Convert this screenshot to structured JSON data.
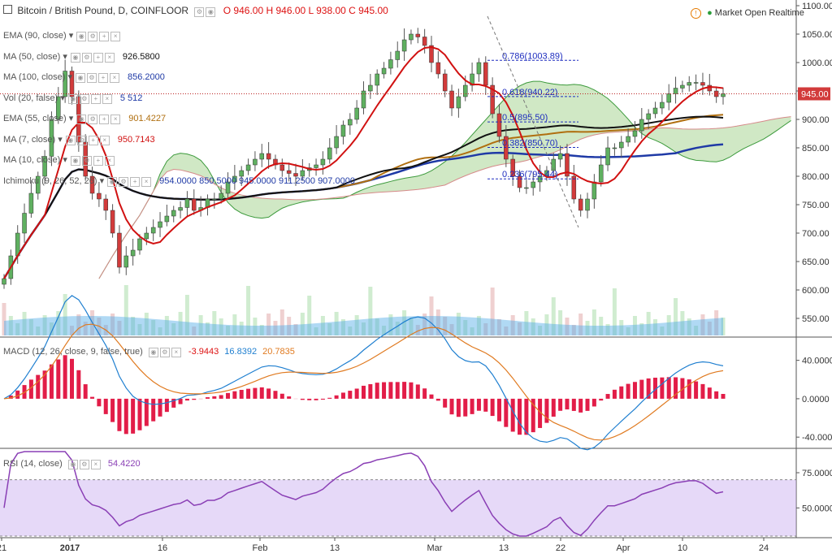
{
  "header": {
    "title": "Bitcoin / British Pound, D, COINFLOOR",
    "ohlc": {
      "o": "O 946.00",
      "h": "H 946.00",
      "l": "L 938.00",
      "c": "C 945.00"
    },
    "market": "Market Open Realtime"
  },
  "indicators": [
    {
      "name": "EMA (90, close)",
      "value": "",
      "color": "#999999"
    },
    {
      "name": "MA (50, close)",
      "value": "926.5800",
      "color": "#111111"
    },
    {
      "name": "MA (100, close)",
      "value": "856.2000",
      "color": "#1f3aa6"
    },
    {
      "name": "Vol (20, false)",
      "value": "5  512",
      "color": "#1f3aa6"
    },
    {
      "name": "EMA (55, close)",
      "value": "901.4227",
      "color": "#b06f10"
    },
    {
      "name": "MA (7, close)",
      "value": "950.7143",
      "color": "#d11111"
    },
    {
      "name": "MA (10, close)",
      "value": "",
      "color": "#999999"
    },
    {
      "name": "Ichimoku (9, 26, 52, 26)",
      "value": "954.0000  850.5000  945.0000  911.2500  907.0000",
      "color": "#1f3aa6"
    }
  ],
  "macd": {
    "label": "MACD (12, 26, close, 9, false, true)",
    "v1": "-3.9443",
    "v2": "16.8392",
    "v3": "20.7835"
  },
  "rsi": {
    "label": "RSI (14, close)",
    "value": "54.4220"
  },
  "price_label": "945.00",
  "chart_data": [
    {
      "type": "candlestick",
      "title": "Bitcoin / British Pound, D, COINFLOOR",
      "y_ticks": [
        "1100.00",
        "1050.00",
        "1000.00",
        "950.00",
        "900.00",
        "850.00",
        "800.00",
        "750.00",
        "700.00",
        "650.00",
        "600.00",
        "550.00"
      ],
      "ylim": [
        520,
        1110
      ],
      "x_ticks": [
        "21",
        "2017",
        "16",
        "Feb",
        "13",
        "Mar",
        "13",
        "22",
        "Apr",
        "10",
        "24"
      ],
      "fib_levels": [
        {
          "label": "0.786(1003.89)",
          "value": 1003.89
        },
        {
          "label": "0.618(940.22)",
          "value": 940.22
        },
        {
          "label": "0.5(895.50)",
          "value": 895.5
        },
        {
          "label": "0.382(850.70)",
          "value": 850.7
        },
        {
          "label": "0.236(795.44)",
          "value": 795.44
        }
      ],
      "current_price": 945,
      "close": [
        620,
        660,
        700,
        735,
        770,
        800,
        835,
        900,
        940,
        985,
        940,
        860,
        800,
        770,
        760,
        740,
        700,
        640,
        660,
        670,
        690,
        700,
        710,
        720,
        730,
        740,
        745,
        760,
        740,
        745,
        760,
        760,
        770,
        790,
        800,
        810,
        820,
        830,
        840,
        830,
        820,
        810,
        805,
        800,
        810,
        815,
        820,
        830,
        850,
        870,
        890,
        900,
        920,
        950,
        960,
        980,
        990,
        1005,
        1020,
        1040,
        1050,
        1045,
        1030,
        1000,
        980,
        950,
        920,
        940,
        960,
        980,
        1000,
        960,
        910,
        870,
        830,
        800,
        780,
        780,
        790,
        800,
        810,
        830,
        840,
        800,
        760,
        740,
        760,
        790,
        820,
        850,
        850,
        860,
        870,
        880,
        900,
        910,
        920,
        930,
        945,
        955,
        960,
        965,
        965,
        960,
        950,
        940,
        945
      ]
    },
    {
      "type": "bar",
      "title": "MACD histogram",
      "y_ticks": [
        "40.0000",
        "0.0000",
        "-40.0000"
      ],
      "ylim": [
        -50,
        60
      ]
    },
    {
      "type": "line",
      "title": "RSI",
      "y_ticks": [
        "75.0000",
        "50.0000"
      ],
      "ylim": [
        30,
        90
      ]
    }
  ]
}
